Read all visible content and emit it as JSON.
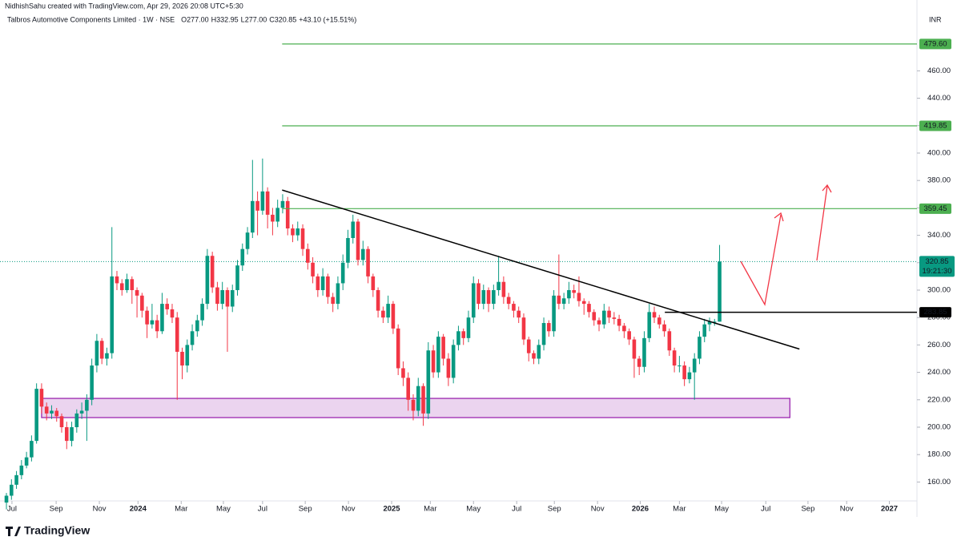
{
  "header": {
    "credit": "NidhishSahu created with TradingView.com, Apr 29, 2026 20:08 UTC+5:30",
    "symbol": "Talbros Automotive Components Limited · 1W · NSE",
    "legend": [
      {
        "key": "O",
        "value": "277.00"
      },
      {
        "key": "H",
        "value": "332.95"
      },
      {
        "key": "L",
        "value": "277.00"
      },
      {
        "key": "C",
        "value": "320.85"
      }
    ],
    "change": "+43.10 (+15.51%)",
    "currency": "INR"
  },
  "footer": {
    "brand": "TradingView"
  },
  "chart_data": {
    "type": "candlestick",
    "up_color": "#089981",
    "down_color": "#f23645",
    "xlim": [
      -1.28,
      181.3
    ],
    "ylim": [
      146.2,
      502.9
    ],
    "xticks": [
      {
        "value": 1.1,
        "label": "Jul"
      },
      {
        "value": 9.9,
        "label": "Sep"
      },
      {
        "value": 18.5,
        "label": "Nov"
      },
      {
        "value": 26.2,
        "label": "2024"
      },
      {
        "value": 34.8,
        "label": "Mar"
      },
      {
        "value": 43.2,
        "label": "May"
      },
      {
        "value": 51,
        "label": "Jul"
      },
      {
        "value": 59.5,
        "label": "Sep"
      },
      {
        "value": 68.1,
        "label": "Nov"
      },
      {
        "value": 76.7,
        "label": "2025"
      },
      {
        "value": 84.4,
        "label": "Mar"
      },
      {
        "value": 93,
        "label": "May"
      },
      {
        "value": 101.6,
        "label": "Jul"
      },
      {
        "value": 109.1,
        "label": "Sep"
      },
      {
        "value": 117.7,
        "label": "Nov"
      },
      {
        "value": 126.2,
        "label": "2026"
      },
      {
        "value": 134,
        "label": "Mar"
      },
      {
        "value": 142.4,
        "label": "May"
      },
      {
        "value": 151.2,
        "label": "Jul"
      },
      {
        "value": 159.6,
        "label": "Sep"
      },
      {
        "value": 167.3,
        "label": "Nov"
      },
      {
        "value": 175.8,
        "label": "2027"
      }
    ],
    "yticks": [
      {
        "value": 160,
        "label": "160.00"
      },
      {
        "value": 180,
        "label": "180.00"
      },
      {
        "value": 200,
        "label": "200.00"
      },
      {
        "value": 220,
        "label": "220.00"
      },
      {
        "value": 240,
        "label": "240.00"
      },
      {
        "value": 260,
        "label": "260.00"
      },
      {
        "value": 280,
        "label": "280.00"
      },
      {
        "value": 300,
        "label": "300.00"
      },
      {
        "value": 320,
        "label": "320.00"
      },
      {
        "value": 340,
        "label": "340.00"
      },
      {
        "value": 360,
        "label": "360.00"
      },
      {
        "value": 380,
        "label": "380.00"
      },
      {
        "value": 400,
        "label": "400.00"
      },
      {
        "value": 420,
        "label": "420.00"
      },
      {
        "value": 440,
        "label": "440.00"
      },
      {
        "value": 460,
        "label": "460.00"
      }
    ],
    "candles": [
      [
        145,
        152,
        140,
        150
      ],
      [
        150,
        162,
        147,
        158
      ],
      [
        158,
        168,
        155,
        165
      ],
      [
        165,
        176,
        162,
        172
      ],
      [
        172,
        182,
        170,
        178
      ],
      [
        178,
        194,
        175,
        190
      ],
      [
        190,
        232,
        188,
        228
      ],
      [
        228,
        232,
        210,
        215
      ],
      [
        215,
        218,
        205,
        210
      ],
      [
        210,
        216,
        206,
        212
      ],
      [
        212,
        214,
        204,
        208
      ],
      [
        208,
        210,
        196,
        200
      ],
      [
        200,
        204,
        184,
        190
      ],
      [
        190,
        204,
        186,
        200
      ],
      [
        200,
        213,
        196,
        210
      ],
      [
        210,
        218,
        206,
        212
      ],
      [
        212,
        224,
        190,
        220
      ],
      [
        220,
        250,
        216,
        245
      ],
      [
        245,
        268,
        240,
        263
      ],
      [
        263,
        265,
        246,
        250
      ],
      [
        250,
        258,
        245,
        254
      ],
      [
        254,
        346,
        250,
        310
      ],
      [
        310,
        314,
        300,
        305
      ],
      [
        305,
        308,
        296,
        300
      ],
      [
        300,
        312,
        298,
        308
      ],
      [
        308,
        310,
        290,
        300
      ],
      [
        300,
        302,
        280,
        296
      ],
      [
        296,
        298,
        280,
        285
      ],
      [
        285,
        288,
        265,
        275
      ],
      [
        275,
        290,
        272,
        278
      ],
      [
        278,
        282,
        265,
        270
      ],
      [
        270,
        298,
        268,
        290
      ],
      [
        290,
        294,
        282,
        286
      ],
      [
        286,
        290,
        276,
        280
      ],
      [
        280,
        284,
        220,
        255
      ],
      [
        255,
        258,
        235,
        245
      ],
      [
        245,
        264,
        240,
        260
      ],
      [
        260,
        275,
        256,
        270
      ],
      [
        270,
        282,
        266,
        278
      ],
      [
        278,
        294,
        274,
        290
      ],
      [
        290,
        330,
        286,
        325
      ],
      [
        325,
        328,
        298,
        302
      ],
      [
        302,
        306,
        285,
        290
      ],
      [
        290,
        306,
        286,
        300
      ],
      [
        300,
        302,
        255,
        288
      ],
      [
        288,
        304,
        284,
        300
      ],
      [
        300,
        322,
        296,
        318
      ],
      [
        318,
        334,
        314,
        330
      ],
      [
        330,
        346,
        326,
        342
      ],
      [
        342,
        395,
        338,
        365
      ],
      [
        365,
        372,
        340,
        358
      ],
      [
        358,
        396,
        355,
        372
      ],
      [
        372,
        375,
        345,
        355
      ],
      [
        355,
        360,
        340,
        350
      ],
      [
        350,
        366,
        346,
        360
      ],
      [
        360,
        370,
        356,
        365
      ],
      [
        365,
        368,
        340,
        345
      ],
      [
        345,
        348,
        335,
        340
      ],
      [
        340,
        350,
        336,
        345
      ],
      [
        345,
        348,
        325,
        330
      ],
      [
        330,
        334,
        315,
        320
      ],
      [
        320,
        324,
        305,
        310
      ],
      [
        310,
        312,
        295,
        300
      ],
      [
        300,
        316,
        296,
        310
      ],
      [
        310,
        312,
        290,
        295
      ],
      [
        295,
        298,
        284,
        290
      ],
      [
        290,
        310,
        286,
        305
      ],
      [
        305,
        326,
        300,
        320
      ],
      [
        320,
        344,
        316,
        338
      ],
      [
        338,
        355,
        334,
        350
      ],
      [
        350,
        352,
        318,
        322
      ],
      [
        322,
        336,
        318,
        330
      ],
      [
        330,
        332,
        305,
        310
      ],
      [
        310,
        312,
        295,
        300
      ],
      [
        300,
        302,
        280,
        285
      ],
      [
        285,
        288,
        276,
        280
      ],
      [
        280,
        296,
        276,
        290
      ],
      [
        290,
        292,
        268,
        272
      ],
      [
        272,
        275,
        238,
        243
      ],
      [
        243,
        248,
        230,
        236
      ],
      [
        236,
        240,
        212,
        220
      ],
      [
        220,
        224,
        205,
        212
      ],
      [
        212,
        236,
        208,
        230
      ],
      [
        230,
        232,
        201,
        210
      ],
      [
        210,
        262,
        206,
        256
      ],
      [
        256,
        260,
        236,
        240
      ],
      [
        240,
        270,
        236,
        266
      ],
      [
        266,
        268,
        245,
        250
      ],
      [
        250,
        254,
        230,
        236
      ],
      [
        236,
        264,
        232,
        260
      ],
      [
        260,
        274,
        256,
        270
      ],
      [
        270,
        272,
        260,
        265
      ],
      [
        265,
        285,
        262,
        280
      ],
      [
        280,
        310,
        276,
        305
      ],
      [
        305,
        308,
        286,
        290
      ],
      [
        290,
        304,
        286,
        300
      ],
      [
        300,
        302,
        284,
        290
      ],
      [
        290,
        304,
        286,
        300
      ],
      [
        300,
        325,
        296,
        306
      ],
      [
        306,
        310,
        290,
        295
      ],
      [
        295,
        298,
        286,
        290
      ],
      [
        290,
        292,
        280,
        285
      ],
      [
        285,
        288,
        276,
        280
      ],
      [
        280,
        283,
        260,
        264
      ],
      [
        264,
        266,
        248,
        254
      ],
      [
        254,
        256,
        246,
        250
      ],
      [
        250,
        264,
        246,
        260
      ],
      [
        260,
        280,
        256,
        276
      ],
      [
        276,
        278,
        266,
        270
      ],
      [
        270,
        300,
        266,
        296
      ],
      [
        296,
        326,
        286,
        290
      ],
      [
        290,
        298,
        286,
        294
      ],
      [
        294,
        306,
        290,
        300
      ],
      [
        300,
        304,
        294,
        298
      ],
      [
        298,
        310,
        288,
        292
      ],
      [
        292,
        294,
        282,
        290
      ],
      [
        290,
        292,
        280,
        284
      ],
      [
        284,
        286,
        274,
        278
      ],
      [
        278,
        280,
        270,
        275
      ],
      [
        275,
        290,
        272,
        285
      ],
      [
        285,
        288,
        276,
        280
      ],
      [
        280,
        284,
        275,
        279
      ],
      [
        279,
        282,
        270,
        274
      ],
      [
        274,
        276,
        265,
        270
      ],
      [
        270,
        272,
        260,
        264
      ],
      [
        264,
        266,
        236,
        250
      ],
      [
        250,
        252,
        238,
        244
      ],
      [
        244,
        270,
        240,
        265
      ],
      [
        265,
        290,
        262,
        284
      ],
      [
        284,
        288,
        276,
        280
      ],
      [
        280,
        282,
        272,
        275
      ],
      [
        275,
        278,
        266,
        270
      ],
      [
        270,
        272,
        252,
        256
      ],
      [
        256,
        258,
        240,
        245
      ],
      [
        245,
        252,
        240,
        245
      ],
      [
        245,
        248,
        230,
        235
      ],
      [
        235,
        244,
        232,
        240
      ],
      [
        240,
        254,
        220,
        250
      ],
      [
        250,
        270,
        246,
        266
      ],
      [
        266,
        279,
        262,
        275
      ],
      [
        275,
        280,
        270,
        277
      ],
      [
        277,
        279,
        274,
        277
      ],
      [
        277,
        332.95,
        277,
        320.85
      ]
    ],
    "levels": [
      {
        "value": 479.6,
        "label": "479.60",
        "from": 54.9,
        "color": "#4caf50"
      },
      {
        "value": 419.85,
        "label": "419.85",
        "from": 54.9,
        "color": "#4caf50"
      },
      {
        "value": 359.45,
        "label": "359.45",
        "from": 54.9,
        "color": "#4caf50"
      },
      {
        "value": 283.85,
        "label": "283.85",
        "from": 131.1,
        "color": "#000000"
      }
    ],
    "last_price": {
      "value": 320.85,
      "label": "320.85",
      "countdown": "19:21:30",
      "color": "#089981"
    },
    "trendline": {
      "x": [
        54.9,
        157.9
      ],
      "y": [
        373,
        257
      ],
      "color": "#000000"
    },
    "zone": {
      "x": [
        7,
        156
      ],
      "y": [
        207,
        221
      ],
      "color": "#9c27b0"
    }
  }
}
